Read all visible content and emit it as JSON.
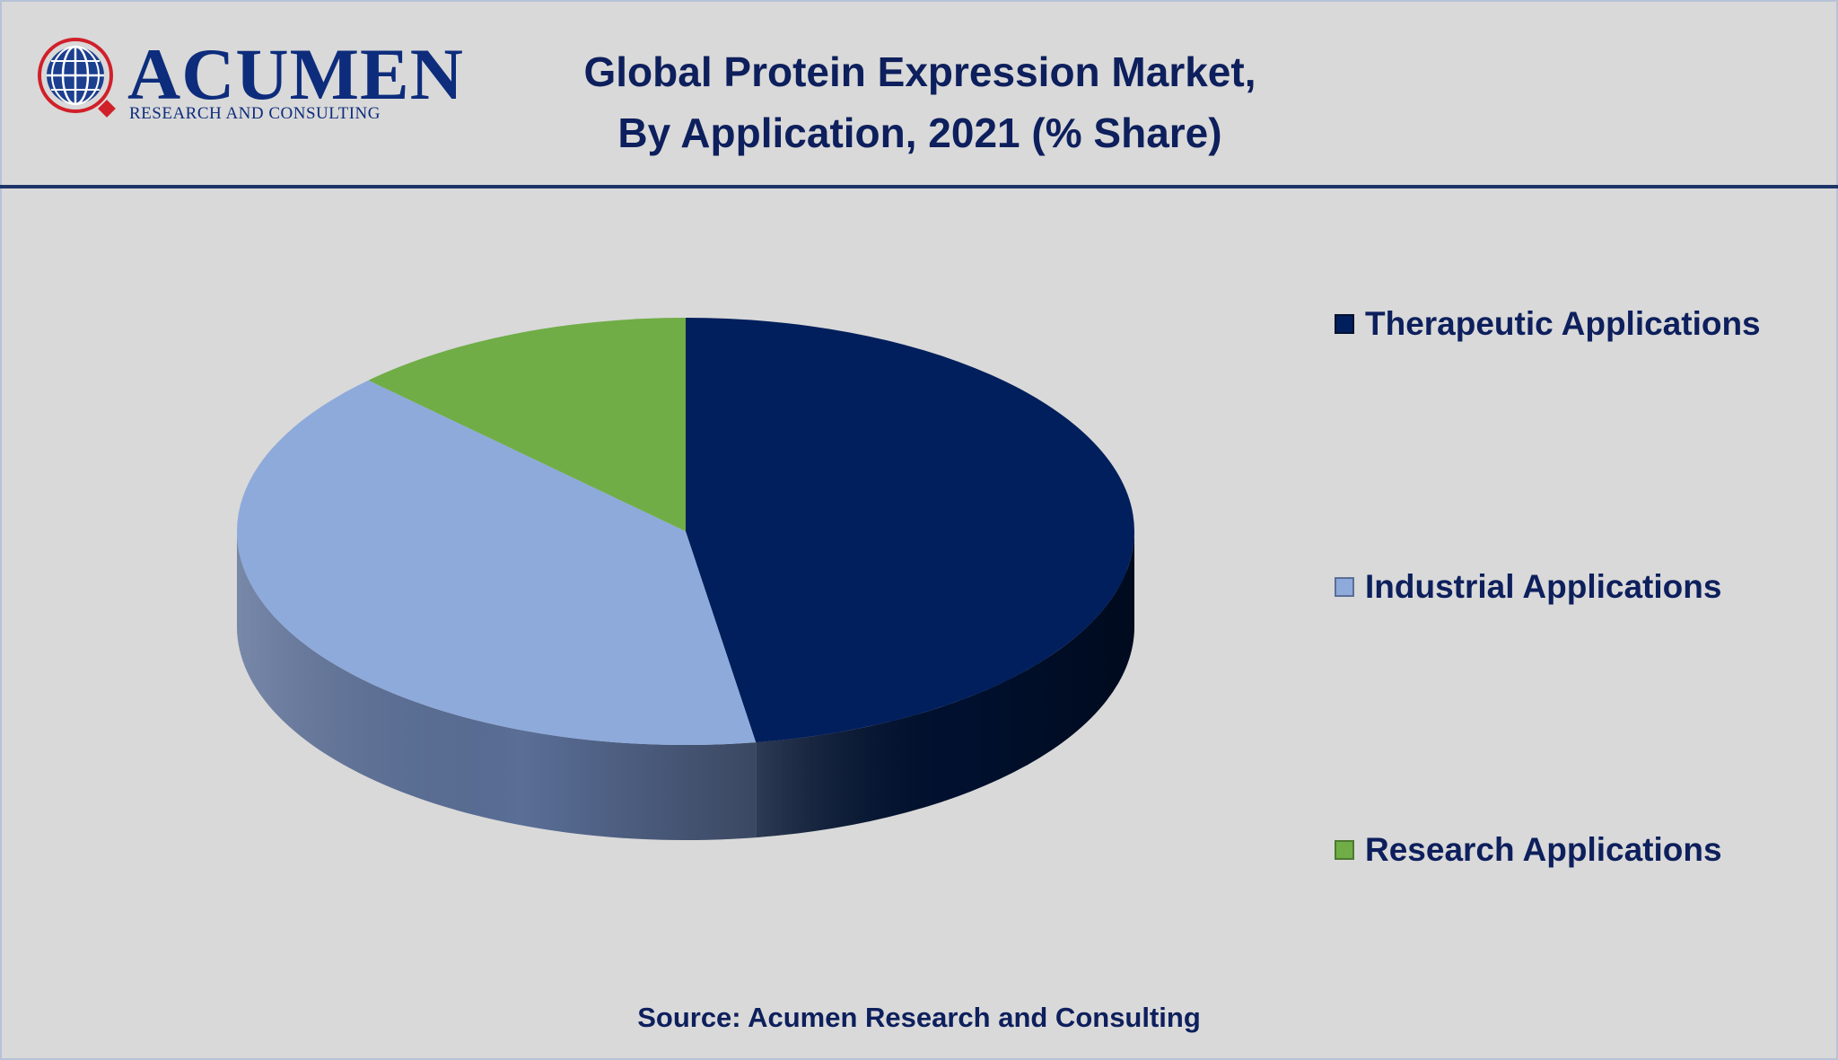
{
  "brand": {
    "name": "ACUMEN",
    "tagline": "RESEARCH AND CONSULTING"
  },
  "title_line1": "Global Protein Expression Market,",
  "title_line2": "By Application, 2021 (% Share)",
  "source": "Source: Acumen Research and Consulting",
  "chart_data": {
    "type": "pie",
    "style": "3d",
    "title": "Global Protein Expression Market, By Application, 2021 (% Share)",
    "legend_position": "right",
    "categories": [
      "Therapeutic Applications",
      "Industrial Applications",
      "Research Applications"
    ],
    "values": [
      47.5,
      40,
      12.5
    ],
    "colors": [
      "#001f5c",
      "#8eaadb",
      "#70ad47"
    ],
    "side_colors": [
      "#00102e",
      "#5a6e96",
      "#4c7a30"
    ]
  }
}
